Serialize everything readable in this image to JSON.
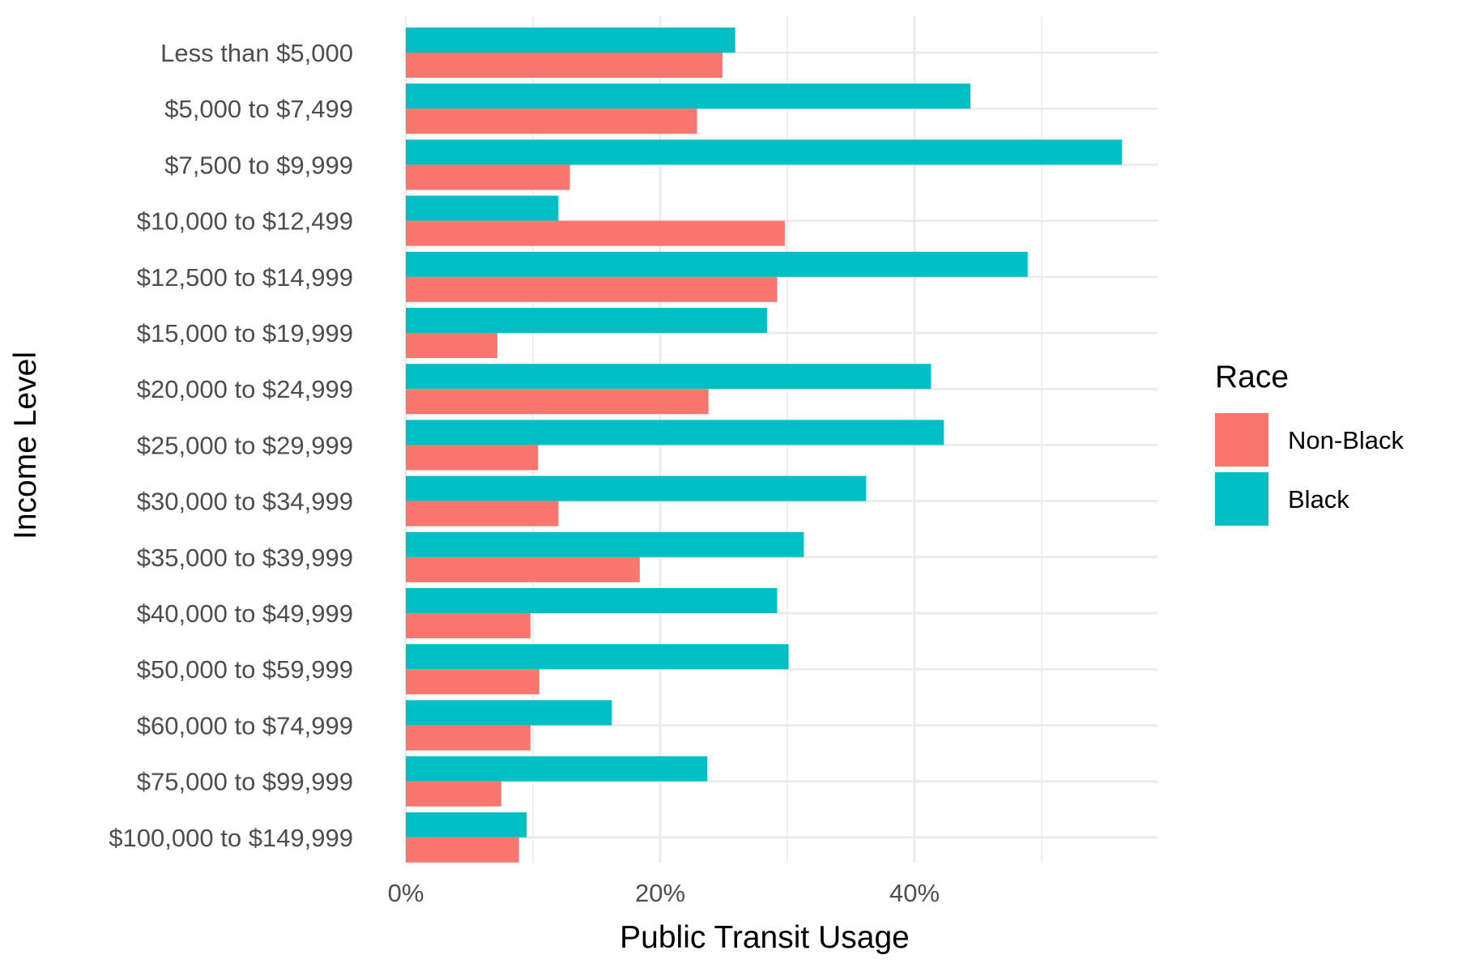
{
  "chart_data": {
    "type": "bar",
    "orientation": "horizontal",
    "xlabel": "Public Transit Usage",
    "ylabel": "Income Level",
    "xlim": [
      0,
      0.59
    ],
    "x_ticks": [
      0,
      0.2,
      0.4
    ],
    "x_tick_labels": [
      "0%",
      "20%",
      "40%"
    ],
    "x_minor_gridlines": [
      0.1,
      0.3,
      0.5
    ],
    "grid": true,
    "categories": [
      "Less than $5,000",
      "$5,000 to $7,499",
      "$7,500 to $9,999",
      "$10,000 to $12,499",
      "$12,500 to $14,999",
      "$15,000 to $19,999",
      "$20,000 to $24,999",
      "$25,000 to $29,999",
      "$30,000 to $34,999",
      "$35,000 to $39,999",
      "$40,000 to $49,999",
      "$50,000 to $59,999",
      "$60,000 to $74,999",
      "$75,000 to $99,999",
      "$100,000 to $149,999"
    ],
    "series": [
      {
        "name": "Non-Black",
        "color": "#F8766D",
        "values": [
          0.249,
          0.229,
          0.129,
          0.298,
          0.292,
          0.072,
          0.238,
          0.104,
          0.12,
          0.184,
          0.098,
          0.105,
          0.098,
          0.075,
          0.089
        ]
      },
      {
        "name": "Black",
        "color": "#00BFC4",
        "values": [
          0.259,
          0.444,
          0.563,
          0.12,
          0.489,
          0.284,
          0.413,
          0.423,
          0.362,
          0.313,
          0.292,
          0.301,
          0.162,
          0.237,
          0.095
        ]
      }
    ],
    "legend": {
      "title": "Race",
      "position": "right",
      "items": [
        "Non-Black",
        "Black"
      ]
    }
  }
}
